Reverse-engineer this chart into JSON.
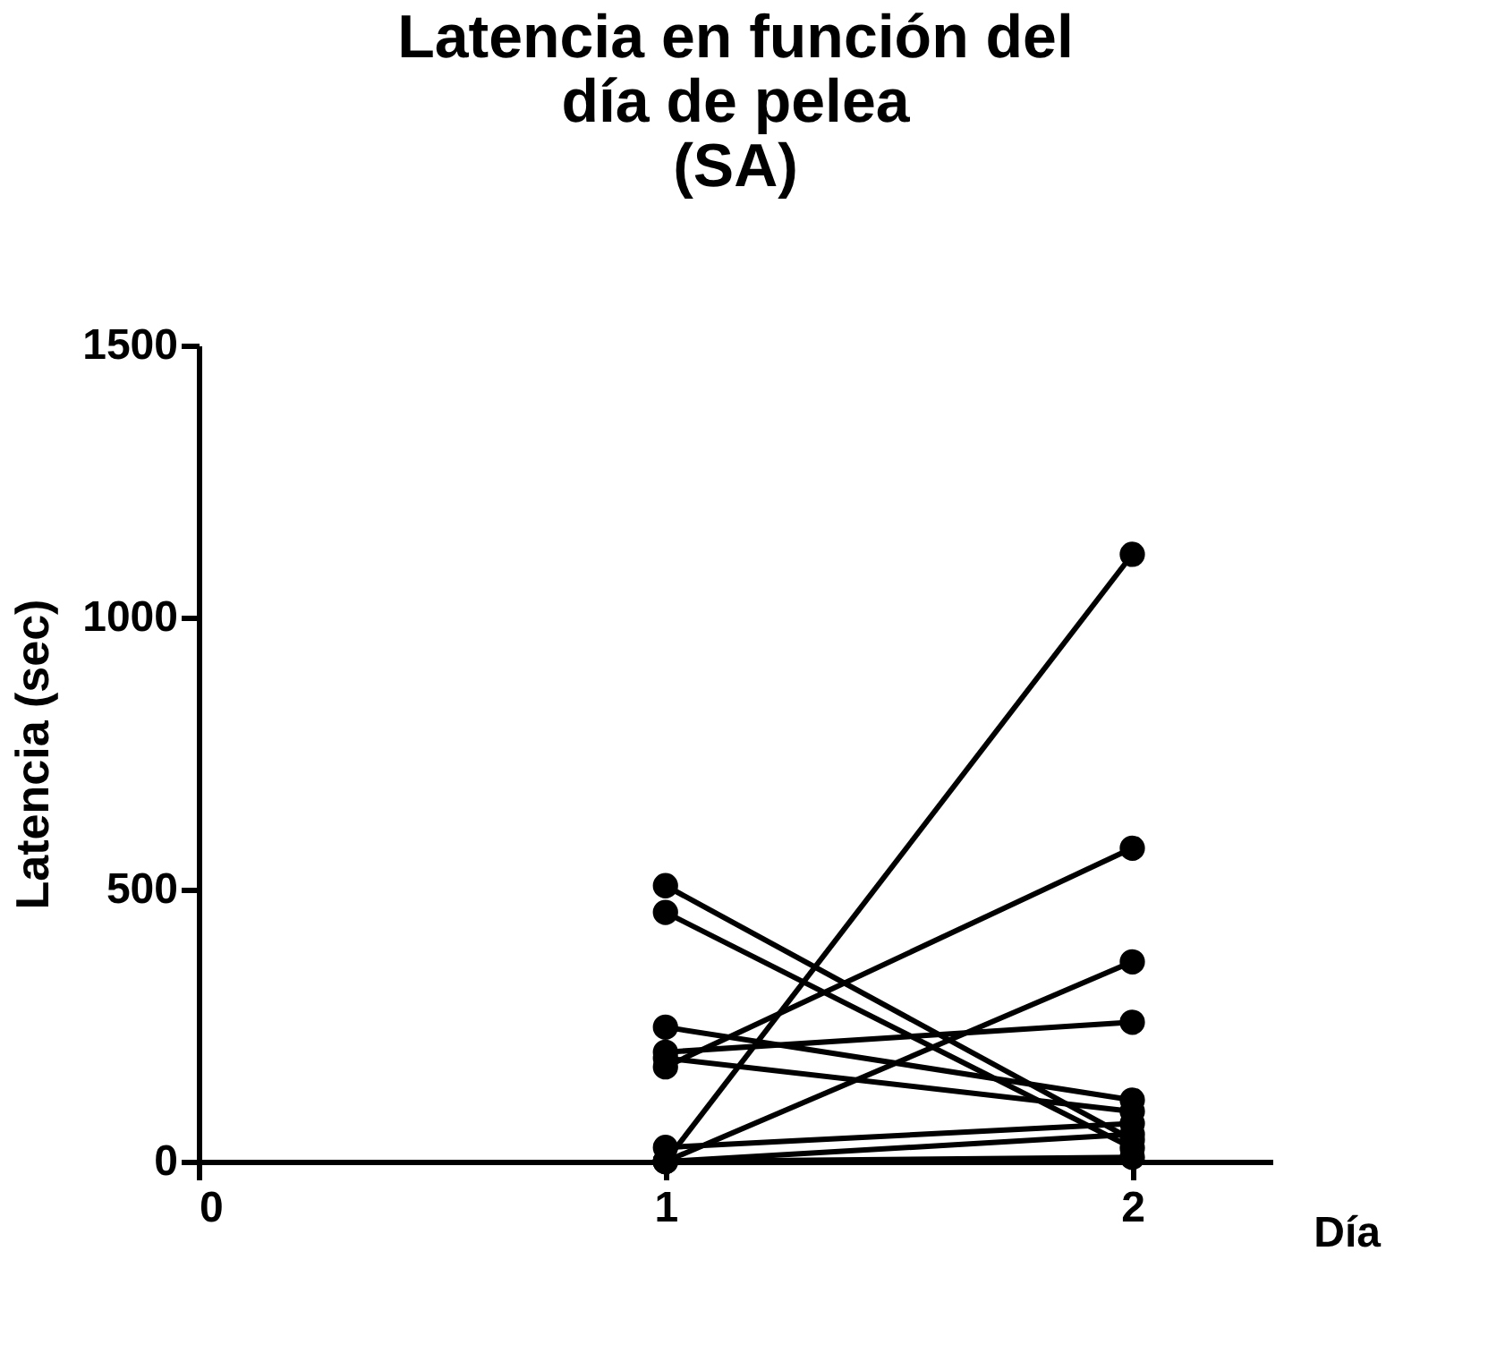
{
  "chart_data": {
    "type": "line",
    "title": [
      "Latencia en función del",
      "día de pelea",
      "(SA)"
    ],
    "xlabel": "Día",
    "ylabel": "Latencia (sec)",
    "x": [
      1,
      2
    ],
    "xlim": [
      0,
      2.3
    ],
    "xticks": [
      0,
      1,
      2
    ],
    "ylim": [
      0,
      1500
    ],
    "yticks": [
      0,
      500,
      1000,
      1500
    ],
    "marker": "circle",
    "line_style": "solid",
    "grid": false,
    "legend": false,
    "series": [
      {
        "color": "#000000",
        "values": [
          507,
          40
        ]
      },
      {
        "color": "#000000",
        "values": [
          458,
          25
        ]
      },
      {
        "color": "#000000",
        "values": [
          247,
          113
        ]
      },
      {
        "color": "#000000",
        "values": [
          201,
          256
        ]
      },
      {
        "color": "#000000",
        "values": [
          190,
          92
        ]
      },
      {
        "color": "#000000",
        "values": [
          174,
          576
        ]
      },
      {
        "color": "#000000",
        "values": [
          0,
          1116
        ]
      },
      {
        "color": "#000000",
        "values": [
          0,
          367
        ]
      },
      {
        "color": "#000000",
        "values": [
          26,
          70
        ]
      },
      {
        "color": "#000000",
        "values": [
          0,
          50
        ]
      },
      {
        "color": "#000000",
        "values": [
          0,
          8
        ]
      }
    ]
  }
}
